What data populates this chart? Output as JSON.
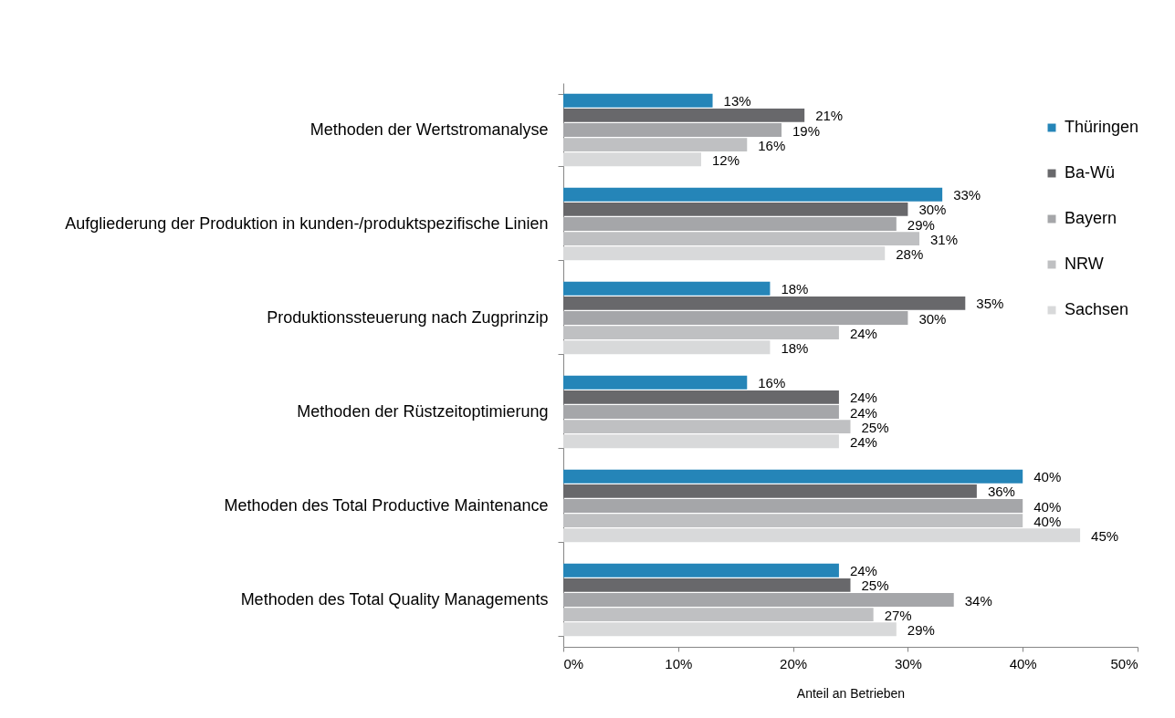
{
  "chart_data": {
    "type": "bar",
    "orientation": "horizontal",
    "xlabel": "Anteil an Betrieben",
    "categories": [
      "Methoden der Wertstromanalyse",
      "Aufgliederung der Produktion in kunden-/produktspezifische Linien",
      "Produktionssteuerung nach Zugprinzip",
      "Methoden der Rüstzeitoptimierung",
      "Methoden des Total Productive Maintenance",
      "Methoden des Total Quality Managements"
    ],
    "series": [
      {
        "name": "Thüringen",
        "color": "#2585b8",
        "values": [
          13,
          33,
          18,
          16,
          40,
          24
        ],
        "value_labels": [
          "13%",
          "33%",
          "18%",
          "16%",
          "40%",
          "24%"
        ]
      },
      {
        "name": "Ba-Wü",
        "color": "#68686b",
        "values": [
          21,
          30,
          35,
          24,
          36,
          25
        ],
        "value_labels": [
          "21%",
          "30%",
          "35%",
          "24%",
          "36%",
          "25%"
        ]
      },
      {
        "name": "Bayern",
        "color": "#a5a6a9",
        "values": [
          19,
          29,
          30,
          24,
          40,
          34
        ],
        "value_labels": [
          "19%",
          "29%",
          "30%",
          "24%",
          "40%",
          "34%"
        ]
      },
      {
        "name": "NRW",
        "color": "#bfc0c2",
        "values": [
          16,
          31,
          24,
          25,
          40,
          27
        ],
        "value_labels": [
          "16%",
          "31%",
          "24%",
          "25%",
          "40%",
          "27%"
        ]
      },
      {
        "name": "Sachsen",
        "color": "#d8d9da",
        "values": [
          12,
          28,
          18,
          24,
          45,
          29
        ],
        "value_labels": [
          "12%",
          "28%",
          "18%",
          "24%",
          "45%",
          "29%"
        ]
      }
    ],
    "xlim": [
      0,
      50
    ],
    "xticks": [
      {
        "value": 0,
        "label": "0%"
      },
      {
        "value": 10,
        "label": "10%"
      },
      {
        "value": 20,
        "label": "20%"
      },
      {
        "value": 30,
        "label": "30%"
      },
      {
        "value": 40,
        "label": "40%"
      },
      {
        "value": 50,
        "label": "50%"
      }
    ],
    "legend": "right"
  }
}
